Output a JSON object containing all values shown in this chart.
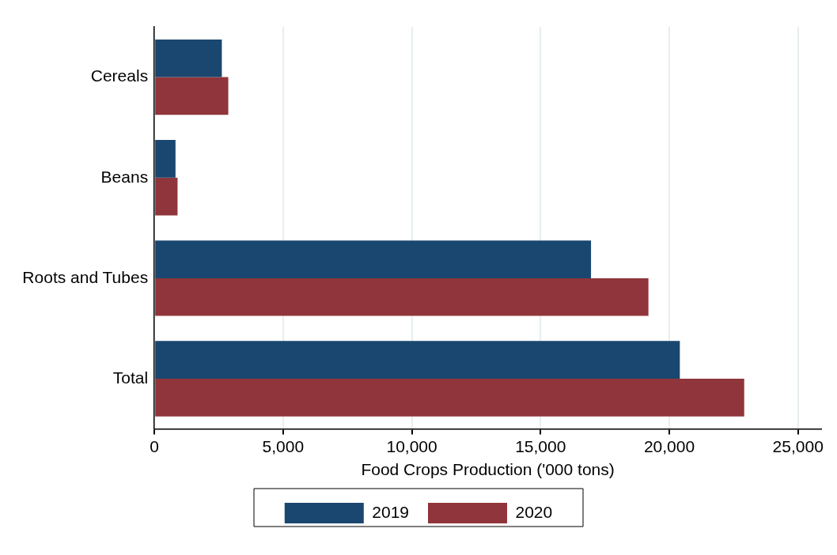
{
  "chart_data": {
    "type": "bar",
    "orientation": "horizontal",
    "xlabel": "Food Crops Production ('000 tons)",
    "categories": [
      "Cereals",
      "Beans",
      "Roots and Tubes",
      "Total"
    ],
    "series": [
      {
        "name": "2019",
        "color": "#1a476f",
        "values": [
          2620,
          820,
          16960,
          20410
        ]
      },
      {
        "name": "2020",
        "color": "#90353b",
        "values": [
          2870,
          900,
          19190,
          22910
        ]
      }
    ],
    "xlim": [
      0,
      25900
    ],
    "xticks": [
      0,
      {
        "value": 5000,
        "label": "5,000"
      },
      {
        "value": 10000,
        "label": "10,000"
      },
      {
        "value": 15000,
        "label": "15,000"
      },
      {
        "value": 20000,
        "label": "20,000"
      },
      {
        "value": 25000,
        "label": "25,000"
      }
    ],
    "grid": "x",
    "legend": "bottom"
  }
}
